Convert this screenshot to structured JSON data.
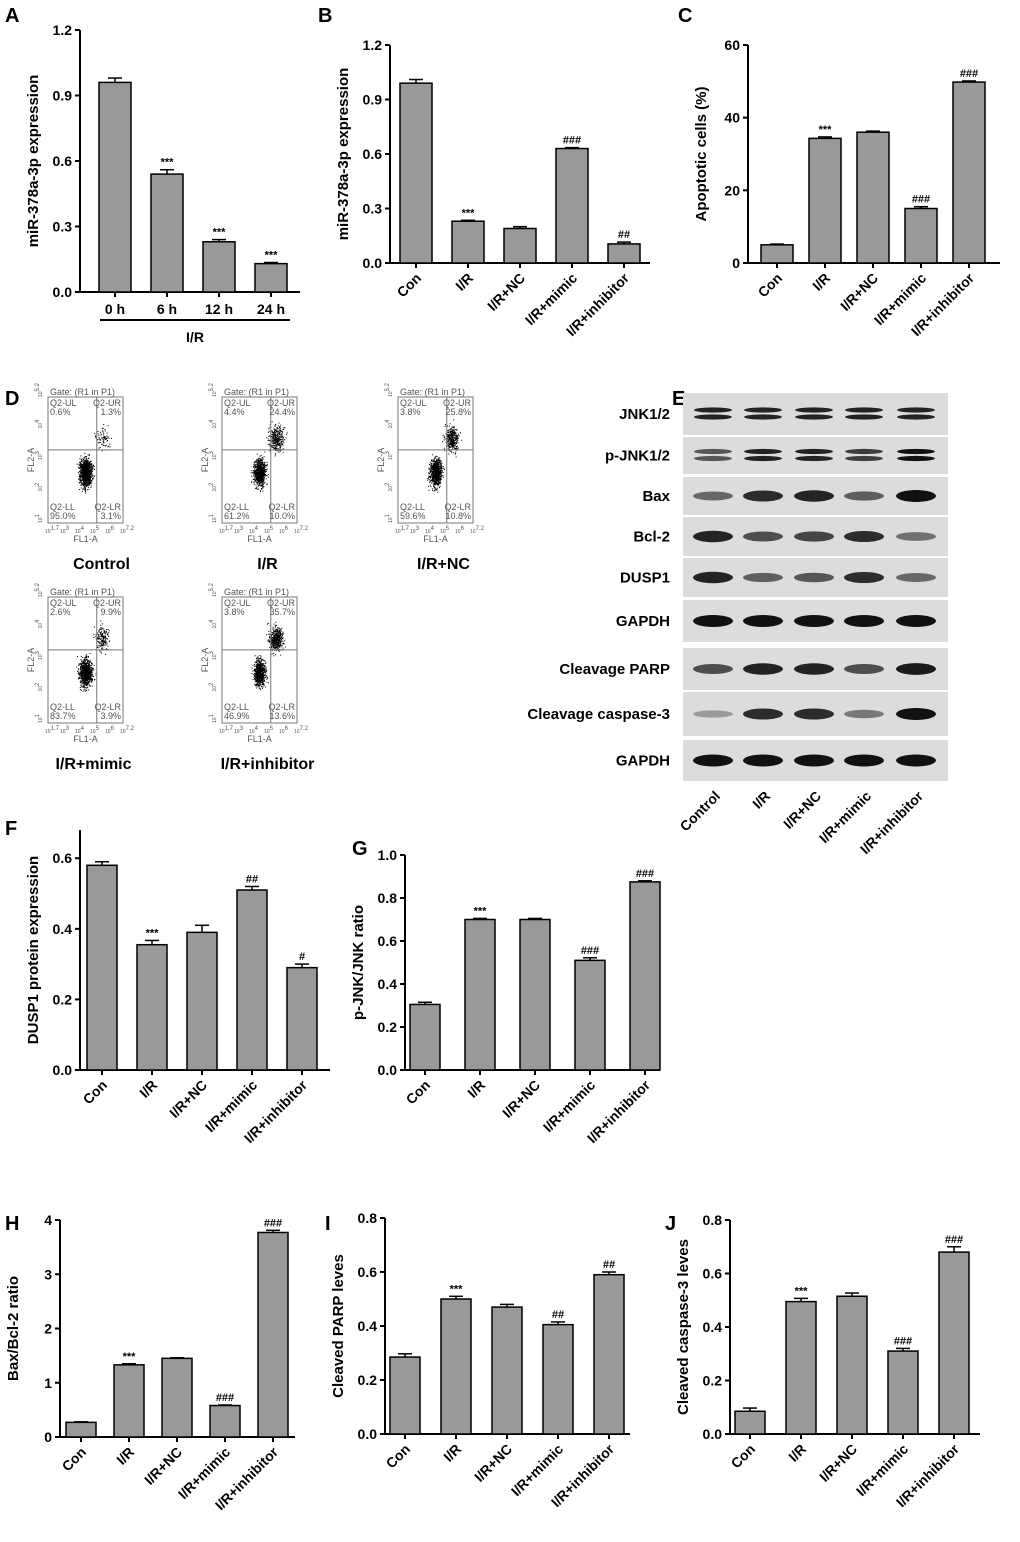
{
  "panel_letters": [
    "A",
    "B",
    "C",
    "D",
    "E",
    "F",
    "G",
    "H",
    "I",
    "J"
  ],
  "chart_data": [
    {
      "id": "A",
      "type": "bar",
      "categories": [
        "0 h",
        "6 h",
        "12 h",
        "24 h"
      ],
      "values": [
        0.96,
        0.54,
        0.23,
        0.13
      ],
      "errors": [
        0.02,
        0.02,
        0.01,
        0.005
      ],
      "annotations": [
        "",
        "***",
        "***",
        "***"
      ],
      "ylabel": "miR-378a-3p expression",
      "ylim": [
        0,
        1.2
      ],
      "yticks": [
        "0.0",
        "0.3",
        "0.6",
        "0.9",
        "1.2"
      ],
      "group_label": "I/R"
    },
    {
      "id": "B",
      "type": "bar",
      "categories": [
        "Con",
        "I/R",
        "I/R+NC",
        "I/R+mimic",
        "I/R+inhibitor"
      ],
      "values": [
        0.99,
        0.23,
        0.19,
        0.63,
        0.105
      ],
      "errors": [
        0.02,
        0.005,
        0.01,
        0.005,
        0.01
      ],
      "annotations": [
        "",
        "***",
        "",
        "###",
        "##"
      ],
      "ylabel": "miR-378a-3p expression",
      "ylim": [
        0,
        1.2
      ],
      "yticks": [
        "0.0",
        "0.3",
        "0.6",
        "0.9",
        "1.2"
      ]
    },
    {
      "id": "C",
      "type": "bar",
      "categories": [
        "Con",
        "I/R",
        "I/R+NC",
        "I/R+mimic",
        "I/R+inhibitor"
      ],
      "values": [
        5,
        34.3,
        36,
        15,
        49.8
      ],
      "errors": [
        0.2,
        0.4,
        0.3,
        0.5,
        0.3
      ],
      "annotations": [
        "",
        "***",
        "",
        "###",
        "###"
      ],
      "ylabel": "Apoptotic cells (%)",
      "ylim": [
        0,
        60
      ],
      "yticks": [
        "0",
        "20",
        "40",
        "60"
      ]
    },
    {
      "id": "F",
      "type": "bar",
      "categories": [
        "Con",
        "I/R",
        "I/R+NC",
        "I/R+mimic",
        "I/R+inhibitor"
      ],
      "values": [
        0.58,
        0.355,
        0.39,
        0.51,
        0.29
      ],
      "errors": [
        0.01,
        0.012,
        0.02,
        0.01,
        0.01
      ],
      "annotations": [
        "",
        "***",
        "",
        "##",
        "#"
      ],
      "ylabel": "DUSP1 protein expression",
      "ylim": [
        0,
        0.68
      ],
      "yticks": [
        "0.0",
        "0.2",
        "0.4",
        "0.6"
      ]
    },
    {
      "id": "G",
      "type": "bar",
      "categories": [
        "Con",
        "I/R",
        "I/R+NC",
        "I/R+mimic",
        "I/R+inhibitor"
      ],
      "values": [
        0.305,
        0.7,
        0.7,
        0.51,
        0.875
      ],
      "errors": [
        0.01,
        0.005,
        0.005,
        0.012,
        0.005
      ],
      "annotations": [
        "",
        "***",
        "",
        "###",
        "###"
      ],
      "ylabel": "p-JNK/JNK ratio",
      "ylim": [
        0,
        1.0
      ],
      "yticks": [
        "0.0",
        "0.2",
        "0.4",
        "0.6",
        "0.8",
        "1.0"
      ]
    },
    {
      "id": "H",
      "type": "bar",
      "categories": [
        "Con",
        "I/R",
        "I/R+NC",
        "I/R+mimic",
        "I/R+inhibitor"
      ],
      "values": [
        0.27,
        1.33,
        1.45,
        0.58,
        3.77
      ],
      "errors": [
        0.01,
        0.02,
        0.01,
        0.01,
        0.04
      ],
      "annotations": [
        "",
        "***",
        "",
        "###",
        "###"
      ],
      "ylabel": "Bax/Bcl-2 ratio",
      "ylim": [
        0,
        4
      ],
      "yticks": [
        "0",
        "1",
        "2",
        "3",
        "4"
      ]
    },
    {
      "id": "I",
      "type": "bar",
      "categories": [
        "Con",
        "I/R",
        "I/R+NC",
        "I/R+mimic",
        "I/R+inhibitor"
      ],
      "values": [
        0.285,
        0.5,
        0.47,
        0.405,
        0.59
      ],
      "errors": [
        0.012,
        0.01,
        0.01,
        0.01,
        0.01
      ],
      "annotations": [
        "",
        "***",
        "",
        "##",
        "##"
      ],
      "ylabel": "Cleaved PARP leves",
      "ylim": [
        0,
        0.8
      ],
      "yticks": [
        "0.0",
        "0.2",
        "0.4",
        "0.6",
        "0.8"
      ]
    },
    {
      "id": "J",
      "type": "bar",
      "categories": [
        "Con",
        "I/R",
        "I/R+NC",
        "I/R+mimic",
        "I/R+inhibitor"
      ],
      "values": [
        0.085,
        0.495,
        0.515,
        0.31,
        0.68
      ],
      "errors": [
        0.012,
        0.012,
        0.012,
        0.01,
        0.02
      ],
      "annotations": [
        "",
        "***",
        "",
        "###",
        "###"
      ],
      "ylabel": "Cleaved caspase-3 leves",
      "ylim": [
        0,
        0.8
      ],
      "yticks": [
        "0.0",
        "0.2",
        "0.4",
        "0.6",
        "0.8"
      ]
    }
  ],
  "flow_cytometry": {
    "gate": "Gate: (R1 in P1)",
    "xlabel": "FL1-A",
    "ylabel": "FL2-A",
    "tick_base": "10",
    "x_ticks": [
      "1.7",
      "3",
      "4",
      "5",
      "6",
      "7.2"
    ],
    "y_ticks": [
      "1",
      "2",
      "3",
      "4",
      "5.2"
    ],
    "quadrants": [
      "Q2-UL",
      "Q2-UR",
      "Q2-LL",
      "Q2-LR"
    ],
    "plots": [
      {
        "title": "Control",
        "UL": "0.6%",
        "UR": "1.3%",
        "LL": "95.0%",
        "LR": "3.1%"
      },
      {
        "title": "I/R",
        "UL": "4.4%",
        "UR": "24.4%",
        "LL": "61.2%",
        "LR": "10.0%"
      },
      {
        "title": "I/R+NC",
        "UL": "3.8%",
        "UR": "25.8%",
        "LL": "59.6%",
        "LR": "10.8%"
      },
      {
        "title": "I/R+mimic",
        "UL": "2.6%",
        "UR": "9.9%",
        "LL": "83.7%",
        "LR": "3.9%"
      },
      {
        "title": "I/R+inhibitor",
        "UL": "3.8%",
        "UR": "35.7%",
        "LL": "46.9%",
        "LR": "13.6%"
      }
    ]
  },
  "western_blot": {
    "lanes": [
      "Control",
      "I/R",
      "I/R+NC",
      "I/R+mimic",
      "I/R+inhibitor"
    ],
    "rows": [
      {
        "label": "JNK1/2",
        "intensity": [
          0.9,
          0.9,
          0.9,
          0.9,
          0.9
        ],
        "double": true
      },
      {
        "label": "p-JNK1/2",
        "intensity": [
          0.6,
          0.9,
          0.9,
          0.75,
          1.0
        ],
        "double": true
      },
      {
        "label": "Bax",
        "intensity": [
          0.5,
          0.85,
          0.9,
          0.55,
          1.0
        ]
      },
      {
        "label": "Bcl-2",
        "intensity": [
          0.9,
          0.65,
          0.7,
          0.85,
          0.45
        ]
      },
      {
        "label": "DUSP1",
        "intensity": [
          0.9,
          0.55,
          0.6,
          0.85,
          0.5
        ]
      },
      {
        "label": "GAPDH",
        "intensity": [
          1,
          1,
          1,
          1,
          1
        ]
      },
      {
        "label": "Cleavage PARP",
        "intensity": [
          0.65,
          0.9,
          0.9,
          0.65,
          0.95
        ]
      },
      {
        "label": "Cleavage caspase-3",
        "intensity": [
          0.2,
          0.85,
          0.85,
          0.4,
          1.0
        ]
      },
      {
        "label": "GAPDH",
        "intensity": [
          1,
          1,
          1,
          1,
          1
        ]
      }
    ]
  },
  "colors": {
    "bar": "#999999",
    "axis": "#000000",
    "blot_bg": "#dcdcdc"
  }
}
